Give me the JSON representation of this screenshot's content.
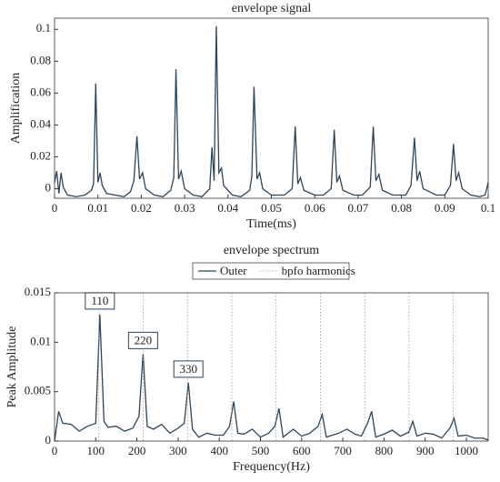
{
  "chart_data": [
    {
      "type": "line",
      "title": "envelope signal",
      "xlabel": "Time(ms)",
      "ylabel": "Amplification",
      "x": [
        0,
        0.0005,
        0.001,
        0.0015,
        0.002,
        0.003,
        0.005,
        0.007,
        0.0085,
        0.009,
        0.0095,
        0.01,
        0.0105,
        0.011,
        0.012,
        0.014,
        0.016,
        0.0175,
        0.0183,
        0.019,
        0.0196,
        0.0203,
        0.021,
        0.023,
        0.025,
        0.0268,
        0.0275,
        0.028,
        0.0286,
        0.0292,
        0.03,
        0.032,
        0.034,
        0.0358,
        0.0363,
        0.0368,
        0.0373,
        0.0379,
        0.0385,
        0.039,
        0.041,
        0.043,
        0.045,
        0.0455,
        0.046,
        0.0467,
        0.0473,
        0.048,
        0.05,
        0.053,
        0.0548,
        0.0555,
        0.0561,
        0.0567,
        0.0575,
        0.06,
        0.062,
        0.0638,
        0.0645,
        0.0651,
        0.0657,
        0.0665,
        0.069,
        0.071,
        0.0728,
        0.0735,
        0.0741,
        0.0748,
        0.0756,
        0.078,
        0.081,
        0.0822,
        0.083,
        0.0836,
        0.0842,
        0.085,
        0.088,
        0.09,
        0.0913,
        0.092,
        0.0926,
        0.0932,
        0.094,
        0.096,
        0.098,
        0.0993,
        0.1
      ],
      "series": [
        {
          "color": "#2e4558",
          "values": [
            0.004,
            0.011,
            -0.003,
            0.01,
            0.001,
            -0.004,
            -0.005,
            -0.004,
            -0.001,
            0.003,
            0.066,
            0.004,
            0.01,
            0.002,
            -0.003,
            -0.004,
            -0.005,
            -0.002,
            0.005,
            0.033,
            0.006,
            0.01,
            0,
            -0.004,
            -0.005,
            -0.001,
            0.007,
            0.075,
            0.006,
            0.011,
            0,
            -0.004,
            -0.005,
            0,
            0.026,
            0.005,
            0.102,
            0.01,
            0.013,
            0.002,
            -0.004,
            -0.005,
            -0.001,
            0.008,
            0.064,
            0.006,
            0.01,
            0,
            -0.004,
            -0.004,
            0,
            0.039,
            0.003,
            0.007,
            -0.001,
            -0.004,
            -0.004,
            0,
            0.037,
            0.004,
            0.008,
            -0.001,
            -0.004,
            -0.004,
            0.001,
            0.039,
            0.005,
            0.009,
            -0.001,
            -0.004,
            -0.004,
            0.002,
            0.032,
            0.005,
            0.011,
            0,
            -0.004,
            -0.004,
            0.002,
            0.028,
            0.005,
            0.01,
            0,
            -0.004,
            -0.005,
            -0.004,
            0.004
          ]
        }
      ],
      "xlim": [
        0,
        0.1
      ],
      "ylim": [
        -0.006,
        0.107
      ],
      "xticks": [
        0,
        0.01,
        0.02,
        0.03,
        0.04,
        0.05,
        0.06,
        0.07,
        0.08,
        0.09,
        0.1
      ],
      "yticks": [
        0,
        0.02,
        0.04,
        0.06,
        0.08,
        0.1
      ]
    },
    {
      "type": "line",
      "title": "envelope spectrum",
      "xlabel": "Frequency(Hz)",
      "ylabel": "Peak Amplitude",
      "legend": "top",
      "x": [
        0,
        10,
        20,
        40,
        60,
        80,
        100,
        110,
        120,
        130,
        150,
        170,
        190,
        205,
        215,
        225,
        240,
        260,
        280,
        300,
        315,
        325,
        335,
        350,
        370,
        390,
        410,
        425,
        435,
        445,
        460,
        480,
        500,
        520,
        535,
        545,
        555,
        580,
        600,
        620,
        640,
        650,
        660,
        690,
        710,
        730,
        745,
        760,
        770,
        780,
        800,
        820,
        840,
        860,
        870,
        880,
        900,
        920,
        940,
        960,
        970,
        980,
        1000,
        1020,
        1040,
        1053
      ],
      "series": [
        {
          "name": "Outer",
          "color": "#2e4558",
          "values": [
            0,
            0.003,
            0.0018,
            0.0017,
            0.001,
            0.0015,
            0.0018,
            0.0128,
            0.002,
            0.0014,
            0.0015,
            0.001,
            0.0013,
            0.0025,
            0.0088,
            0.0015,
            0.0012,
            0.0017,
            0.0008,
            0.0013,
            0.0018,
            0.0059,
            0.0012,
            0.0004,
            0.0008,
            0.0006,
            0.0006,
            0.0015,
            0.004,
            0.0008,
            0.0007,
            0.0012,
            0.0004,
            0.0008,
            0.0015,
            0.0033,
            0.0004,
            0.0012,
            0.0005,
            0.0008,
            0.0015,
            0.0027,
            0.0004,
            0.0008,
            0.0012,
            0.0007,
            0.0005,
            0.0018,
            0.003,
            0.0004,
            0.0007,
            0.0011,
            0.0005,
            0.0009,
            0.002,
            0.0005,
            0.0008,
            0.0007,
            0.0003,
            0.0013,
            0.0023,
            0.0005,
            0.0006,
            0.0003,
            0.0003,
            0.0001
          ]
        },
        {
          "name": "bpfo harmonics",
          "color": "#9a9a9a",
          "x": [
            107.6,
            215.2,
            322.8,
            430.4,
            538,
            645.6,
            753.2,
            860.8,
            968.4
          ]
        }
      ],
      "annotations": [
        {
          "text": "110",
          "x": 110,
          "y": 0.0128
        },
        {
          "text": "220",
          "x": 215,
          "y": 0.0088
        },
        {
          "text": "330",
          "x": 325,
          "y": 0.0059
        }
      ],
      "xlim": [
        0,
        1053
      ],
      "ylim": [
        0,
        0.015
      ],
      "xticks": [
        0,
        100,
        200,
        300,
        400,
        500,
        600,
        700,
        800,
        900,
        1000
      ],
      "yticks": [
        0,
        0.005,
        0.01,
        0.015
      ]
    }
  ]
}
